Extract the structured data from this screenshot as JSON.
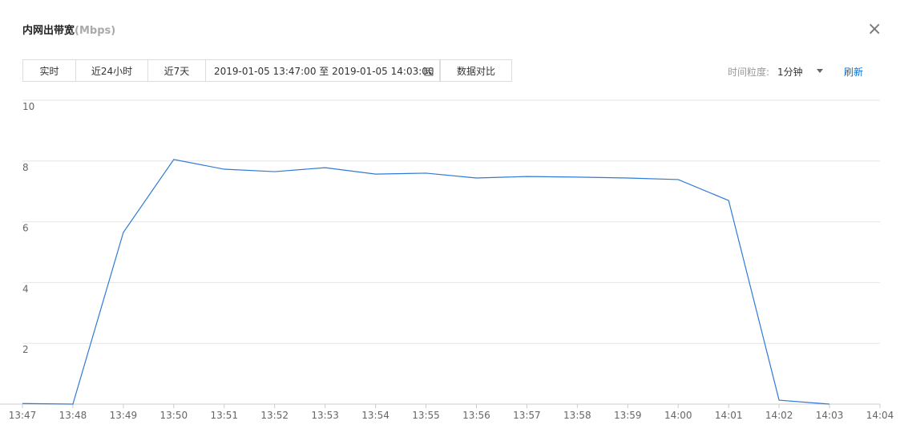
{
  "header": {
    "title": "内网出带宽",
    "unit": "(Mbps)"
  },
  "toolbar": {
    "buttons": [
      "实时",
      "近24小时",
      "近7天"
    ],
    "date_range": "2019-01-05 13:47:00 至 2019-01-05 14:03:00",
    "compare": "数据对比",
    "granularity_label": "时间粒度:",
    "granularity": "1分钟",
    "refresh": "刷新"
  },
  "chart_data": {
    "type": "line",
    "categories": [
      "13:47",
      "13:48",
      "13:49",
      "13:50",
      "13:51",
      "13:52",
      "13:53",
      "13:54",
      "13:55",
      "13:56",
      "13:57",
      "13:58",
      "13:59",
      "14:00",
      "14:01",
      "14:02",
      "14:03",
      "14:04"
    ],
    "series": [
      {
        "color": "#2f7ad6",
        "values": [
          0.02,
          0,
          5.65,
          8.05,
          7.73,
          7.65,
          7.78,
          7.57,
          7.6,
          7.44,
          7.49,
          7.47,
          7.44,
          7.39,
          6.7,
          0.13,
          0,
          null
        ]
      }
    ],
    "ylim": [
      0,
      10
    ],
    "yticks": [
      2,
      4,
      6,
      8,
      10
    ],
    "grid": true
  }
}
